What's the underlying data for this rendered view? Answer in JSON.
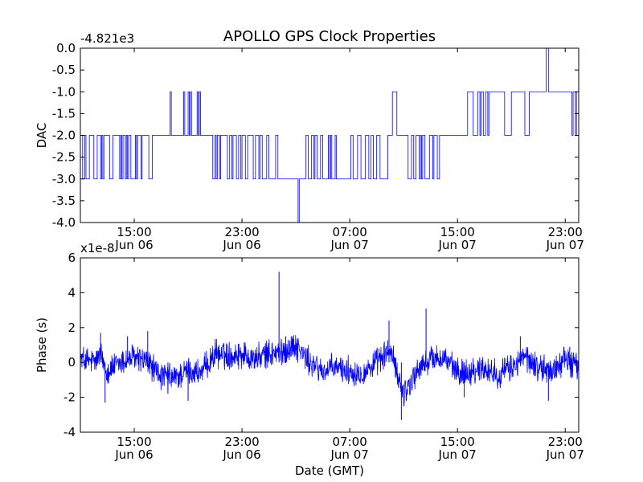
{
  "chart_data": [
    {
      "type": "line",
      "title": "APOLLO GPS Clock Properties",
      "ylabel": "DAC",
      "xlabel": "",
      "y_offset_text": "-4.821e3",
      "ylim": [
        -4.0,
        0.0
      ],
      "yticks": [
        {
          "value": 0.0,
          "label": "0.0"
        },
        {
          "value": -0.5,
          "label": "-0.5"
        },
        {
          "value": -1.0,
          "label": "-1.0"
        },
        {
          "value": -1.5,
          "label": "-1.5"
        },
        {
          "value": -2.0,
          "label": "-2.0"
        },
        {
          "value": -2.5,
          "label": "-2.5"
        },
        {
          "value": -3.0,
          "label": "-3.0"
        },
        {
          "value": -3.5,
          "label": "-3.5"
        },
        {
          "value": -4.0,
          "label": "-4.0"
        }
      ],
      "xlim": [
        "2009-06-06 11:00",
        "2009-06-08 00:00"
      ],
      "xticks": [
        {
          "value": "2009-06-06 15:00",
          "time": "15:00",
          "date": "Jun 06"
        },
        {
          "value": "2009-06-06 23:00",
          "time": "23:00",
          "date": "Jun 06"
        },
        {
          "value": "2009-06-07 07:00",
          "time": "07:00",
          "date": "Jun 07"
        },
        {
          "value": "2009-06-07 15:00",
          "time": "15:00",
          "date": "Jun 07"
        },
        {
          "value": "2009-06-07 23:00",
          "time": "23:00",
          "date": "Jun 07"
        }
      ],
      "series": [
        {
          "color": "#0000ff",
          "steps": [
            [
              "2009-06-06 11:00",
              -2
            ],
            [
              "2009-06-06 11:10",
              -3
            ],
            [
              "2009-06-06 11:20",
              -2
            ],
            [
              "2009-06-06 11:25",
              -3
            ],
            [
              "2009-06-06 11:40",
              -2
            ],
            [
              "2009-06-06 12:00",
              -3
            ],
            [
              "2009-06-06 12:15",
              -2
            ],
            [
              "2009-06-06 12:30",
              -3
            ],
            [
              "2009-06-06 12:35",
              -2
            ],
            [
              "2009-06-06 12:40",
              -3
            ],
            [
              "2009-06-06 12:45",
              -2
            ],
            [
              "2009-06-06 13:10",
              -3
            ],
            [
              "2009-06-06 13:25",
              -2
            ],
            [
              "2009-06-06 13:55",
              -3
            ],
            [
              "2009-06-06 14:00",
              -2
            ],
            [
              "2009-06-06 14:05",
              -3
            ],
            [
              "2009-06-06 14:10",
              -2
            ],
            [
              "2009-06-06 14:20",
              -3
            ],
            [
              "2009-06-06 14:25",
              -2
            ],
            [
              "2009-06-06 14:30",
              -3
            ],
            [
              "2009-06-06 14:35",
              -2
            ],
            [
              "2009-06-06 14:45",
              -3
            ],
            [
              "2009-06-06 15:05",
              -2
            ],
            [
              "2009-06-06 15:10",
              -3
            ],
            [
              "2009-06-06 15:15",
              -2
            ],
            [
              "2009-06-06 15:30",
              -3
            ],
            [
              "2009-06-06 15:35",
              -2
            ],
            [
              "2009-06-06 16:05",
              -3
            ],
            [
              "2009-06-06 16:20",
              -2
            ],
            [
              "2009-06-06 17:40",
              -1
            ],
            [
              "2009-06-06 17:45",
              -2
            ],
            [
              "2009-06-06 18:40",
              -1
            ],
            [
              "2009-06-06 18:45",
              -2
            ],
            [
              "2009-06-06 19:00",
              -1
            ],
            [
              "2009-06-06 19:05",
              -2
            ],
            [
              "2009-06-06 19:10",
              -1
            ],
            [
              "2009-06-06 19:15",
              -2
            ],
            [
              "2009-06-06 19:40",
              -1
            ],
            [
              "2009-06-06 19:45",
              -2
            ],
            [
              "2009-06-06 19:50",
              -1
            ],
            [
              "2009-06-06 19:55",
              -2
            ],
            [
              "2009-06-06 20:30",
              -2
            ],
            [
              "2009-06-06 20:50",
              -3
            ],
            [
              "2009-06-06 21:00",
              -2
            ],
            [
              "2009-06-06 21:05",
              -3
            ],
            [
              "2009-06-06 21:10",
              -2
            ],
            [
              "2009-06-06 21:20",
              -3
            ],
            [
              "2009-06-06 21:25",
              -2
            ],
            [
              "2009-06-06 21:55",
              -3
            ],
            [
              "2009-06-06 22:05",
              -2
            ],
            [
              "2009-06-06 22:15",
              -3
            ],
            [
              "2009-06-06 22:20",
              -2
            ],
            [
              "2009-06-06 22:35",
              -3
            ],
            [
              "2009-06-06 22:45",
              -2
            ],
            [
              "2009-06-06 22:55",
              -3
            ],
            [
              "2009-06-06 23:00",
              -2
            ],
            [
              "2009-06-06 23:15",
              -3
            ],
            [
              "2009-06-06 23:25",
              -2
            ],
            [
              "2009-06-06 23:50",
              -3
            ],
            [
              "2009-06-07 00:00",
              -2
            ],
            [
              "2009-06-07 00:15",
              -3
            ],
            [
              "2009-06-07 00:20",
              -2
            ],
            [
              "2009-06-07 00:30",
              -3
            ],
            [
              "2009-06-07 00:50",
              -2
            ],
            [
              "2009-06-07 01:00",
              -3
            ],
            [
              "2009-06-07 01:30",
              -2
            ],
            [
              "2009-06-07 01:40",
              -3
            ],
            [
              "2009-06-07 02:00",
              -3
            ],
            [
              "2009-06-07 03:00",
              -3
            ],
            [
              "2009-06-07 03:10",
              -4
            ],
            [
              "2009-06-07 03:15",
              -3
            ],
            [
              "2009-06-07 03:45",
              -2
            ],
            [
              "2009-06-07 03:55",
              -3
            ],
            [
              "2009-06-07 04:10",
              -2
            ],
            [
              "2009-06-07 04:20",
              -3
            ],
            [
              "2009-06-07 04:25",
              -2
            ],
            [
              "2009-06-07 04:35",
              -3
            ],
            [
              "2009-06-07 04:50",
              -2
            ],
            [
              "2009-06-07 05:00",
              -3
            ],
            [
              "2009-06-07 05:25",
              -2
            ],
            [
              "2009-06-07 05:30",
              -3
            ],
            [
              "2009-06-07 05:35",
              -2
            ],
            [
              "2009-06-07 05:40",
              -3
            ],
            [
              "2009-06-07 05:55",
              -2
            ],
            [
              "2009-06-07 06:00",
              -3
            ],
            [
              "2009-06-07 07:05",
              -2
            ],
            [
              "2009-06-07 07:15",
              -3
            ],
            [
              "2009-06-07 07:35",
              -2
            ],
            [
              "2009-06-07 07:50",
              -3
            ],
            [
              "2009-06-07 08:10",
              -2
            ],
            [
              "2009-06-07 08:25",
              -3
            ],
            [
              "2009-06-07 08:35",
              -2
            ],
            [
              "2009-06-07 08:45",
              -3
            ],
            [
              "2009-06-07 09:00",
              -2
            ],
            [
              "2009-06-07 09:15",
              -3
            ],
            [
              "2009-06-07 09:50",
              -2
            ],
            [
              "2009-06-07 10:10",
              -1
            ],
            [
              "2009-06-07 10:30",
              -2
            ],
            [
              "2009-06-07 11:20",
              -3
            ],
            [
              "2009-06-07 11:35",
              -2
            ],
            [
              "2009-06-07 11:45",
              -3
            ],
            [
              "2009-06-07 11:55",
              -2
            ],
            [
              "2009-06-07 12:10",
              -3
            ],
            [
              "2009-06-07 12:15",
              -2
            ],
            [
              "2009-06-07 12:20",
              -3
            ],
            [
              "2009-06-07 12:25",
              -2
            ],
            [
              "2009-06-07 12:35",
              -3
            ],
            [
              "2009-06-07 12:55",
              -2
            ],
            [
              "2009-06-07 13:10",
              -3
            ],
            [
              "2009-06-07 13:15",
              -2
            ],
            [
              "2009-06-07 13:30",
              -3
            ],
            [
              "2009-06-07 13:40",
              -2
            ],
            [
              "2009-06-07 14:00",
              -2
            ],
            [
              "2009-06-07 14:45",
              -2
            ],
            [
              "2009-06-07 15:45",
              -1
            ],
            [
              "2009-06-07 16:10",
              -2
            ],
            [
              "2009-06-07 16:30",
              -1
            ],
            [
              "2009-06-07 16:40",
              -2
            ],
            [
              "2009-06-07 16:45",
              -1
            ],
            [
              "2009-06-07 16:55",
              -2
            ],
            [
              "2009-06-07 17:05",
              -1
            ],
            [
              "2009-06-07 17:15",
              -2
            ],
            [
              "2009-06-07 17:20",
              -1
            ],
            [
              "2009-06-07 17:30",
              -1
            ],
            [
              "2009-06-07 18:30",
              -2
            ],
            [
              "2009-06-07 19:00",
              -1
            ],
            [
              "2009-06-07 20:00",
              -2
            ],
            [
              "2009-06-07 20:20",
              -1
            ],
            [
              "2009-06-07 21:35",
              0
            ],
            [
              "2009-06-07 21:45",
              -1
            ],
            [
              "2009-06-07 23:30",
              -2
            ],
            [
              "2009-06-07 23:35",
              -1
            ],
            [
              "2009-06-07 23:40",
              -1
            ],
            [
              "2009-06-07 23:45",
              -2
            ],
            [
              "2009-06-07 23:50",
              -1
            ],
            [
              "2009-06-08 00:00",
              -1
            ]
          ]
        }
      ]
    },
    {
      "type": "line",
      "title": "",
      "ylabel": "Phase (s)",
      "xlabel": "Date (GMT)",
      "y_offset_text": "x1e-8",
      "ylim": [
        -4,
        6
      ],
      "yticks": [
        {
          "value": -4,
          "label": "-4"
        },
        {
          "value": -2,
          "label": "-2"
        },
        {
          "value": 0,
          "label": "0"
        },
        {
          "value": 2,
          "label": "2"
        },
        {
          "value": 4,
          "label": "4"
        },
        {
          "value": 6,
          "label": "6"
        }
      ],
      "xlim": [
        "2009-06-06 11:00",
        "2009-06-08 00:00"
      ],
      "xticks": [
        {
          "value": "2009-06-06 15:00",
          "time": "15:00",
          "date": "Jun 06"
        },
        {
          "value": "2009-06-06 23:00",
          "time": "23:00",
          "date": "Jun 06"
        },
        {
          "value": "2009-06-07 07:00",
          "time": "07:00",
          "date": "Jun 07"
        },
        {
          "value": "2009-06-07 15:00",
          "time": "15:00",
          "date": "Jun 07"
        },
        {
          "value": "2009-06-07 23:00",
          "time": "23:00",
          "date": "Jun 07"
        }
      ],
      "series": [
        {
          "color": "#0000ff",
          "trend": [
            [
              "2009-06-06 11:00",
              0.2
            ],
            [
              "2009-06-06 12:00",
              0.0
            ],
            [
              "2009-06-06 12:30",
              0.4
            ],
            [
              "2009-06-06 13:00",
              -0.5
            ],
            [
              "2009-06-06 14:00",
              0.0
            ],
            [
              "2009-06-06 15:00",
              0.3
            ],
            [
              "2009-06-06 16:00",
              0.0
            ],
            [
              "2009-06-06 17:00",
              -0.8
            ],
            [
              "2009-06-06 18:00",
              -0.9
            ],
            [
              "2009-06-06 19:00",
              -0.5
            ],
            [
              "2009-06-06 20:00",
              -0.6
            ],
            [
              "2009-06-06 21:00",
              0.5
            ],
            [
              "2009-06-06 22:00",
              0.4
            ],
            [
              "2009-06-06 23:00",
              0.5
            ],
            [
              "2009-06-07 00:00",
              0.2
            ],
            [
              "2009-06-07 01:00",
              0.5
            ],
            [
              "2009-06-07 02:00",
              0.6
            ],
            [
              "2009-06-07 03:00",
              1.0
            ],
            [
              "2009-06-07 04:00",
              0.0
            ],
            [
              "2009-06-07 05:00",
              -0.5
            ],
            [
              "2009-06-07 06:00",
              -0.3
            ],
            [
              "2009-06-07 07:00",
              -0.5
            ],
            [
              "2009-06-07 08:00",
              -0.6
            ],
            [
              "2009-06-07 09:00",
              0.0
            ],
            [
              "2009-06-07 10:00",
              0.7
            ],
            [
              "2009-06-07 11:00",
              -1.8
            ],
            [
              "2009-06-07 12:00",
              -0.5
            ],
            [
              "2009-06-07 13:00",
              0.2
            ],
            [
              "2009-06-07 14:00",
              0.3
            ],
            [
              "2009-06-07 15:00",
              -0.6
            ],
            [
              "2009-06-07 16:00",
              -0.5
            ],
            [
              "2009-06-07 17:00",
              -0.3
            ],
            [
              "2009-06-07 18:00",
              -0.7
            ],
            [
              "2009-06-07 19:00",
              -0.3
            ],
            [
              "2009-06-07 20:00",
              0.3
            ],
            [
              "2009-06-07 21:00",
              -0.3
            ],
            [
              "2009-06-07 22:00",
              -0.5
            ],
            [
              "2009-06-07 23:00",
              0.2
            ],
            [
              "2009-06-08 00:00",
              -0.3
            ]
          ],
          "spikes": [
            [
              "2009-06-06 12:30",
              1.7
            ],
            [
              "2009-06-06 12:50",
              -2.3
            ],
            [
              "2009-06-06 14:30",
              1.5
            ],
            [
              "2009-06-06 16:00",
              1.8
            ],
            [
              "2009-06-06 17:30",
              -1.8
            ],
            [
              "2009-06-06 19:00",
              -2.2
            ],
            [
              "2009-06-07 01:45",
              5.2
            ],
            [
              "2009-06-07 02:15",
              1.5
            ],
            [
              "2009-06-07 09:55",
              2.4
            ],
            [
              "2009-06-07 10:50",
              -3.3
            ],
            [
              "2009-06-07 12:40",
              3.1
            ],
            [
              "2009-06-07 15:30",
              -2.0
            ],
            [
              "2009-06-07 19:40",
              1.5
            ],
            [
              "2009-06-07 21:45",
              -2.2
            ],
            [
              "2009-06-07 23:20",
              0.9
            ]
          ]
        }
      ]
    }
  ]
}
